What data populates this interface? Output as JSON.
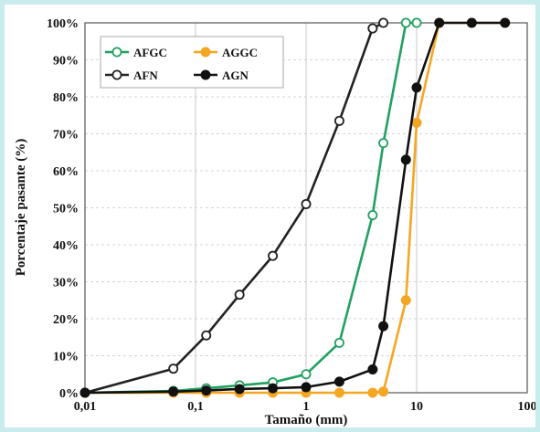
{
  "chart_data": {
    "type": "line",
    "xlabel": "Tamaño (mm)",
    "ylabel": "Porcentaje pasante (%)",
    "x_scale": "log",
    "xlim": [
      0.01,
      100
    ],
    "ylim": [
      0,
      100
    ],
    "x_ticks": [
      "0,01",
      "0,1",
      "1",
      "10",
      "100"
    ],
    "y_ticks": [
      "0%",
      "10%",
      "20%",
      "30%",
      "40%",
      "50%",
      "60%",
      "70%",
      "80%",
      "90%",
      "100%"
    ],
    "grid": true,
    "legend": "top-left",
    "series": [
      {
        "name": "AFGC",
        "color": "#22a060",
        "marker": "open",
        "x": [
          0.01,
          0.063,
          0.125,
          0.25,
          0.5,
          1,
          2,
          4,
          5,
          8,
          10
        ],
        "y": [
          0,
          0.5,
          1.2,
          2,
          2.8,
          5,
          13.5,
          48,
          67.5,
          100,
          100
        ]
      },
      {
        "name": "AGGC",
        "color": "#f5a623",
        "marker": "filled",
        "x": [
          0.01,
          0.063,
          0.125,
          0.25,
          0.5,
          1,
          2,
          4,
          5,
          8,
          10,
          16,
          31.5,
          63
        ],
        "y": [
          0,
          0,
          0,
          0,
          0,
          0,
          0,
          0,
          0.3,
          25,
          73,
          100,
          100,
          100
        ]
      },
      {
        "name": "AFN",
        "color": "#222222",
        "marker": "open",
        "x": [
          0.01,
          0.063,
          0.125,
          0.25,
          0.5,
          1,
          2,
          4,
          5
        ],
        "y": [
          0,
          6.5,
          15.5,
          26.5,
          37,
          51,
          73.5,
          98.5,
          100
        ]
      },
      {
        "name": "AGN",
        "color": "#111111",
        "marker": "filled",
        "x": [
          0.01,
          0.063,
          0.125,
          0.25,
          0.5,
          1,
          2,
          4,
          5,
          8,
          10,
          16,
          31.5,
          63
        ],
        "y": [
          0,
          0.3,
          0.6,
          1,
          1.2,
          1.5,
          3,
          6.3,
          18,
          63,
          82.5,
          100,
          100,
          100
        ]
      }
    ]
  }
}
